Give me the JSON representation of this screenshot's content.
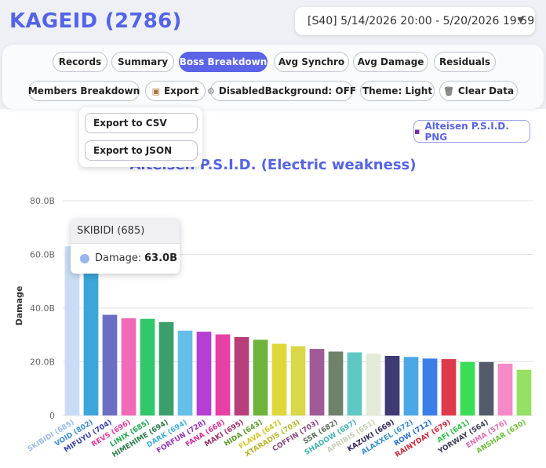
{
  "header": {
    "title": "KAGEID (2786)",
    "period": "[S40] 5/14/2026 20:00 - 5/20/2026 19:59",
    "caret_icon": "chevron-down-icon"
  },
  "toolbar": {
    "row1": [
      {
        "label": "Records"
      },
      {
        "label": "Summary"
      },
      {
        "label": "Boss Breakdown",
        "active": true
      },
      {
        "label": "Avg Synchro"
      },
      {
        "label": "Avg Damage"
      },
      {
        "label": "Residuals"
      }
    ],
    "row2": [
      {
        "label": "Members Breakdown"
      },
      {
        "label": "Export",
        "icon": "box-icon"
      },
      {
        "label": "DisabledBackground: OFF",
        "icon": "gear-icon"
      },
      {
        "label": "Theme: Light"
      },
      {
        "label": "Clear Data",
        "icon": "trash-icon"
      }
    ]
  },
  "export_menu": {
    "items": [
      "Export to CSV",
      "Export to JSON"
    ]
  },
  "png_button": {
    "label": "Alteisen P.S.I.D. PNG",
    "icon": "save-icon"
  },
  "tooltip": {
    "title": "SKIBIDI (685)",
    "label": "Damage:",
    "value": "63.0B"
  },
  "chart_data": {
    "type": "bar",
    "title": "Alteisen P.S.I.D. (Electric weakness)",
    "ylabel": "Damage",
    "ylim": [
      0,
      80
    ],
    "yticks": [
      "0",
      "20.0B",
      "40.0B",
      "60.0B",
      "80.0B"
    ],
    "categories": [
      "SKIBIDI (685)",
      "VOID (802)",
      "MIFUYU (704)",
      "REVS (696)",
      "LINIX (685)",
      "HIMEHIME (694)",
      "DARK (694)",
      "FORFUN (728)",
      "FANA (668)",
      "MAKI (695)",
      "HIDA (643)",
      "FLAVA (647)",
      "XTARADIS (703)",
      "COFFIN (703)",
      "SSR (682)",
      "SHADOW (697)",
      "APRIBIS (651)",
      "KAZUKI (669)",
      "ALAXXEL (672)",
      "ROW (712)",
      "RAINYDAY (679)",
      "AFI (641)",
      "YORWAY (564)",
      "ENMA (576)",
      "ANSHAR (630)"
    ],
    "values": [
      63.0,
      57.5,
      37.5,
      36.2,
      36.0,
      34.8,
      31.6,
      31.2,
      30.2,
      29.2,
      28.2,
      26.7,
      25.8,
      24.8,
      23.8,
      23.5,
      23.0,
      22.2,
      21.8,
      21.2,
      21.0,
      19.9,
      19.9,
      19.3,
      17.0
    ],
    "colors": [
      "#c9dcf5",
      "#3aa6d9",
      "#6a6fc4",
      "#f06ab8",
      "#2fc86a",
      "#3c9e6a",
      "#66bfe8",
      "#b43fd2",
      "#e83fa6",
      "#b73e78",
      "#6eb33a",
      "#dfd83a",
      "#d8d84a",
      "#a05a96",
      "#6e826a",
      "#60c8c4",
      "#e4ead8",
      "#3e3a72",
      "#4aa8e6",
      "#3a7ee8",
      "#de3a4a",
      "#3ade56",
      "#555a6a",
      "#f58ac6",
      "#96e064"
    ],
    "label_colors": [
      "#9bbcec",
      "#3a8ecf",
      "#3a42a6",
      "#e83aa0",
      "#20a850",
      "#2c7a4e",
      "#4aaedc",
      "#9a32b8",
      "#d8309a",
      "#a03068",
      "#5a9a2a",
      "#cfc82a",
      "#b8b830",
      "#8a4a80",
      "#5a6c58",
      "#40b4b0",
      "#c8d0b8",
      "#2e2a5a",
      "#3a90d0",
      "#2a6ed0",
      "#c82a3a",
      "#2ac246",
      "#3a3f50",
      "#e070b0",
      "#70c040"
    ]
  }
}
